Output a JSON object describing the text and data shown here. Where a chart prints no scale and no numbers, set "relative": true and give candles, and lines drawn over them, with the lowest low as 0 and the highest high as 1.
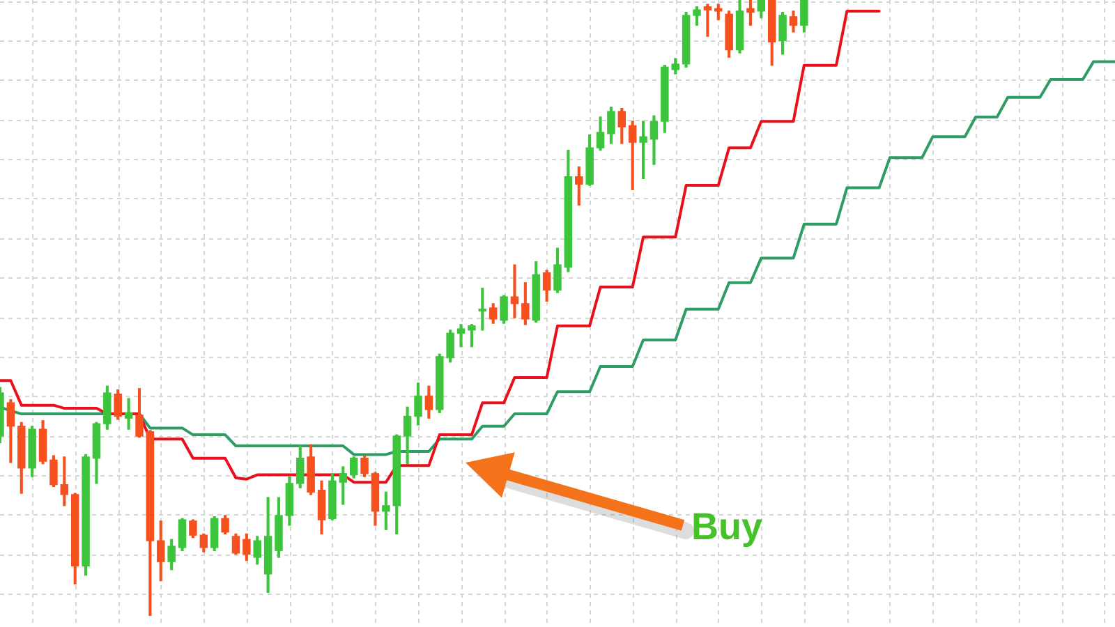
{
  "chart_data": {
    "type": "candlestick",
    "relative": true,
    "categories": [
      null,
      null,
      null,
      null,
      null,
      null,
      null,
      null,
      null,
      null,
      null,
      null,
      null,
      null,
      null,
      null,
      null,
      null,
      null,
      null,
      null,
      null,
      null,
      null,
      null,
      null,
      null,
      null,
      null,
      null,
      null,
      null,
      null,
      null,
      null,
      null,
      null,
      null,
      null,
      null,
      null,
      null,
      null,
      null,
      null,
      null,
      null,
      null,
      null,
      null,
      null,
      null,
      null,
      null,
      null,
      null,
      null,
      null,
      null,
      null,
      null,
      null,
      null,
      null,
      null,
      null,
      null,
      null,
      null,
      null,
      null,
      null,
      null,
      null,
      null,
      null,
      null,
      null,
      null,
      null,
      null,
      null,
      null,
      null,
      null,
      null,
      null,
      null,
      null,
      null,
      null,
      null,
      null,
      null,
      null,
      null,
      null,
      null,
      null,
      null,
      null,
      null,
      null,
      null,
      null
    ],
    "ohlc": [
      [
        0.292,
        0.371,
        0.281,
        0.362
      ],
      [
        0.346,
        0.351,
        0.249,
        0.308
      ],
      [
        0.308,
        0.314,
        0.199,
        0.24
      ],
      [
        0.24,
        0.308,
        0.226,
        0.303
      ],
      [
        0.303,
        0.317,
        0.247,
        0.251
      ],
      [
        0.253,
        0.26,
        0.21,
        0.213
      ],
      [
        0.213,
        0.258,
        0.179,
        0.197
      ],
      [
        0.197,
        0.199,
        0.052,
        0.081
      ],
      [
        0.081,
        0.262,
        0.066,
        0.258
      ],
      [
        0.256,
        0.314,
        0.215,
        0.312
      ],
      [
        0.312,
        0.373,
        0.303,
        0.362
      ],
      [
        0.36,
        0.367,
        0.319,
        0.324
      ],
      [
        0.321,
        0.353,
        0.303,
        0.33
      ],
      [
        0.326,
        0.369,
        0.29,
        0.292
      ],
      [
        0.299,
        0.301,
        0.0,
        0.122
      ],
      [
        0.122,
        0.154,
        0.057,
        0.088
      ],
      [
        0.088,
        0.124,
        0.075,
        0.113
      ],
      [
        0.111,
        0.158,
        0.106,
        0.156
      ],
      [
        0.154,
        0.156,
        0.127,
        0.131
      ],
      [
        0.131,
        0.133,
        0.104,
        0.111
      ],
      [
        0.111,
        0.161,
        0.106,
        0.158
      ],
      [
        0.158,
        0.163,
        0.133,
        0.136
      ],
      [
        0.129,
        0.133,
        0.1,
        0.102
      ],
      [
        0.124,
        0.133,
        0.09,
        0.1
      ],
      [
        0.095,
        0.129,
        0.084,
        0.122
      ],
      [
        0.068,
        0.192,
        0.038,
        0.129
      ],
      [
        0.106,
        0.192,
        0.095,
        0.163
      ],
      [
        0.163,
        0.226,
        0.147,
        0.215
      ],
      [
        0.215,
        0.276,
        0.208,
        0.256
      ],
      [
        0.258,
        0.278,
        0.197,
        0.201
      ],
      [
        0.204,
        0.219,
        0.133,
        0.156
      ],
      [
        0.158,
        0.231,
        0.156,
        0.219
      ],
      [
        0.217,
        0.242,
        0.181,
        0.231
      ],
      [
        0.229,
        0.258,
        0.224,
        0.256
      ],
      [
        0.256,
        0.26,
        0.226,
        0.231
      ],
      [
        0.231,
        0.233,
        0.147,
        0.17
      ],
      [
        0.17,
        0.201,
        0.14,
        0.179
      ],
      [
        0.179,
        0.294,
        0.133,
        0.292
      ],
      [
        0.292,
        0.339,
        0.247,
        0.324
      ],
      [
        0.324,
        0.378,
        0.31,
        0.357
      ],
      [
        0.357,
        0.373,
        0.321,
        0.335
      ],
      [
        0.335,
        0.425,
        0.33,
        0.421
      ],
      [
        0.419,
        0.464,
        0.412,
        0.459
      ],
      [
        0.459,
        0.473,
        0.437,
        0.466
      ],
      [
        0.464,
        0.473,
        0.437,
        0.471
      ],
      [
        0.495,
        0.532,
        0.464,
        0.498
      ],
      [
        0.5,
        0.507,
        0.475,
        0.482
      ],
      [
        0.48,
        0.52,
        0.475,
        0.518
      ],
      [
        0.518,
        0.57,
        0.484,
        0.507
      ],
      [
        0.507,
        0.541,
        0.473,
        0.482
      ],
      [
        0.48,
        0.575,
        0.477,
        0.554
      ],
      [
        0.557,
        0.561,
        0.511,
        0.529
      ],
      [
        0.529,
        0.597,
        0.525,
        0.57
      ],
      [
        0.566,
        0.756,
        0.559,
        0.713
      ],
      [
        0.713,
        0.729,
        0.667,
        0.701
      ],
      [
        0.701,
        0.781,
        0.699,
        0.76
      ],
      [
        0.76,
        0.81,
        0.756,
        0.785
      ],
      [
        0.783,
        0.826,
        0.767,
        0.819
      ],
      [
        0.819,
        0.824,
        0.767,
        0.794
      ],
      [
        0.796,
        0.803,
        0.692,
        0.769
      ],
      [
        0.769,
        0.803,
        0.71,
        0.778
      ],
      [
        0.774,
        0.812,
        0.733,
        0.803
      ],
      [
        0.803,
        0.894,
        0.785,
        0.891
      ],
      [
        0.887,
        0.905,
        0.88,
        0.896
      ],
      [
        0.896,
        0.98,
        0.891,
        0.975
      ],
      [
        0.975,
        0.989,
        0.959,
        0.984
      ],
      [
        0.989,
        0.993,
        0.941,
        0.984
      ],
      [
        0.986,
        0.993,
        0.968,
        0.982
      ],
      [
        0.977,
        0.982,
        0.907,
        0.919
      ],
      [
        0.919,
        1,
        0.914,
        0.982
      ],
      [
        0.986,
        1,
        0.959,
        0.98
      ],
      [
        0.982,
        1,
        0.971,
        1
      ],
      [
        1,
        1,
        0.894,
        0.932
      ],
      [
        0.934,
        0.98,
        0.912,
        0.975
      ],
      [
        0.973,
        0.982,
        0.948,
        0.959
      ],
      [
        0.959,
        1,
        0.948,
        1
      ],
      null,
      null,
      null,
      null,
      null,
      null,
      null,
      null,
      null,
      null,
      null,
      null,
      null,
      null,
      null,
      null,
      null,
      null,
      null,
      null,
      null,
      null,
      null,
      null,
      null,
      null,
      null,
      null,
      null
    ],
    "colors": [
      "#3cc43c",
      "#f5501e",
      "#f5501e",
      "#3cc43c",
      "#f5501e",
      "#f5501e",
      "#f5501e",
      "#f5501e",
      "#3cc43c",
      "#3cc43c",
      "#3cc43c",
      "#f5501e",
      "#3cc43c",
      "#f5501e",
      "#f5501e",
      "#f5501e",
      "#3cc43c",
      "#3cc43c",
      "#f5501e",
      "#f5501e",
      "#3cc43c",
      "#f5501e",
      "#f5501e",
      "#f5501e",
      "#3cc43c",
      "#3cc43c",
      "#3cc43c",
      "#3cc43c",
      "#3cc43c",
      "#f5501e",
      "#f5501e",
      "#3cc43c",
      "#3cc43c",
      "#3cc43c",
      "#f5501e",
      "#f5501e",
      "#3cc43c",
      "#3cc43c",
      "#3cc43c",
      "#3cc43c",
      "#f5501e",
      "#3cc43c",
      "#3cc43c",
      "#3cc43c",
      "#3cc43c",
      "#3cc43c",
      "#f5501e",
      "#3cc43c",
      "#f5501e",
      "#f5501e",
      "#3cc43c",
      "#f5501e",
      "#3cc43c",
      "#3cc43c",
      "#f5501e",
      "#3cc43c",
      "#3cc43c",
      "#3cc43c",
      "#f5501e",
      "#f5501e",
      "#3cc43c",
      "#3cc43c",
      "#3cc43c",
      "#3cc43c",
      "#3cc43c",
      "#3cc43c",
      "#f5501e",
      "#f5501e",
      "#f5501e",
      "#3cc43c",
      "#f5501e",
      "#3cc43c",
      "#f5501e",
      "#3cc43c",
      "#f5501e",
      "#3cc43c",
      null,
      null,
      null,
      null,
      null,
      null,
      null,
      null,
      null,
      null,
      null,
      null,
      null,
      null,
      null,
      null,
      null,
      null,
      null,
      null,
      null,
      null,
      null,
      null,
      null,
      null,
      null,
      null,
      null
    ],
    "series": [
      {
        "type": "line",
        "color": "#e8101a",
        "values": [
          0.382,
          0.382,
          0.342,
          0.342,
          0.342,
          0.342,
          0.337,
          0.337,
          0.337,
          0.337,
          0.328,
          0.328,
          0.328,
          0.328,
          0.287,
          0.287,
          0.287,
          0.287,
          0.256,
          0.256,
          0.256,
          0.256,
          0.224,
          0.222,
          0.229,
          0.229,
          0.229,
          0.229,
          0.229,
          0.229,
          0.229,
          0.229,
          0.229,
          0.217,
          0.217,
          0.217,
          0.217,
          0.244,
          0.244,
          0.244,
          0.244,
          0.294,
          0.294,
          0.294,
          0.294,
          0.346,
          0.346,
          0.346,
          0.387,
          0.387,
          0.387,
          0.387,
          0.471,
          0.471,
          0.471,
          0.471,
          0.534,
          0.534,
          0.534,
          0.534,
          0.615,
          0.615,
          0.615,
          0.615,
          0.699,
          0.699,
          0.699,
          0.699,
          0.76,
          0.76,
          0.76,
          0.803,
          0.803,
          0.803,
          0.803,
          0.894,
          0.894,
          0.894,
          0.894,
          0.982,
          0.982,
          0.982,
          0.982,
          null,
          null,
          null,
          null,
          null,
          null,
          null,
          null,
          null,
          null,
          null,
          null,
          null,
          null,
          null,
          null,
          null,
          null,
          null,
          null,
          null,
          null
        ]
      },
      {
        "type": "line",
        "color": "#2f9d63",
        "values": [
          0.339,
          0.333,
          0.328,
          0.328,
          0.328,
          0.328,
          0.328,
          0.328,
          0.328,
          0.328,
          0.328,
          null,
          0.328,
          0.328,
          0.305,
          0.305,
          0.305,
          0.305,
          0.294,
          0.294,
          0.294,
          0.294,
          0.276,
          0.276,
          0.276,
          0.276,
          0.276,
          0.276,
          0.276,
          0.276,
          0.276,
          0.276,
          0.276,
          0.262,
          0.262,
          0.262,
          0.262,
          0.267,
          0.267,
          0.267,
          0.267,
          0.287,
          0.287,
          0.287,
          0.287,
          0.308,
          0.308,
          0.308,
          0.328,
          0.328,
          0.328,
          0.328,
          0.364,
          0.364,
          0.364,
          0.364,
          0.405,
          0.405,
          0.405,
          0.405,
          0.448,
          0.448,
          0.448,
          0.448,
          0.498,
          0.498,
          0.498,
          0.498,
          0.541,
          0.541,
          0.541,
          0.581,
          0.581,
          0.581,
          0.581,
          0.636,
          0.636,
          0.636,
          0.636,
          0.695,
          0.695,
          0.695,
          0.695,
          0.744,
          0.744,
          0.744,
          0.744,
          0.778,
          0.778,
          0.778,
          0.778,
          0.81,
          0.81,
          0.81,
          0.842,
          0.842,
          0.842,
          0.842,
          0.871,
          0.871,
          0.871,
          0.871,
          0.9,
          0.9,
          0.9
        ]
      }
    ],
    "marker": "none",
    "grid": true,
    "annotations": [
      "Buy"
    ]
  }
}
